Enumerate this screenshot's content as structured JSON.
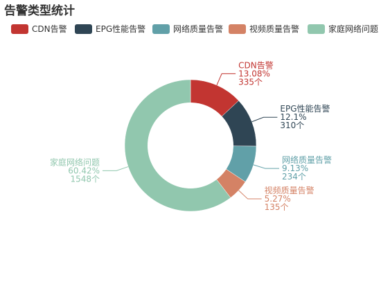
{
  "chart_data": {
    "type": "pie",
    "title": "告警类型统计",
    "inner_radius_ratio": 0.65,
    "legend_position": "top",
    "series": [
      {
        "name": "CDN告警",
        "value": 335,
        "percent": "13.08%",
        "count_label": "335个",
        "color": "#c23531"
      },
      {
        "name": "EPG性能告警",
        "value": 310,
        "percent": "12.1%",
        "count_label": "310个",
        "color": "#2f4554"
      },
      {
        "name": "网络质量告警",
        "value": 234,
        "percent": "9.13%",
        "count_label": "234个",
        "color": "#61a0a8"
      },
      {
        "name": "视频质量告警",
        "value": 135,
        "percent": "5.27%",
        "count_label": "135个",
        "color": "#d48265"
      },
      {
        "name": "家庭网络问题",
        "value": 1548,
        "percent": "60.42%",
        "count_label": "1548个",
        "color": "#91c7ae"
      }
    ]
  }
}
